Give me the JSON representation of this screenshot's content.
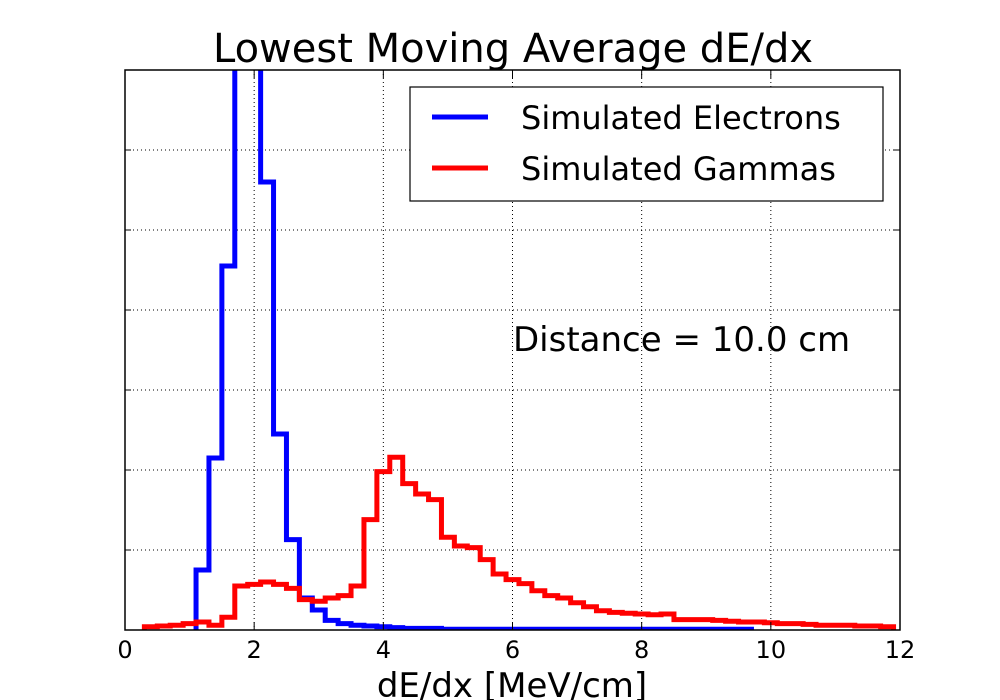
{
  "chart_data": {
    "type": "histogram-step",
    "title": "Lowest Moving Average dE/dx",
    "xlabel": "dE/dx [MeV/cm]",
    "ylabel": "",
    "xlim": [
      0,
      12
    ],
    "ylim": [
      0,
      700
    ],
    "x_ticks": [
      0,
      2,
      4,
      6,
      8,
      10,
      12
    ],
    "x_tick_labels": [
      "0",
      "2",
      "4",
      "6",
      "8",
      "10",
      "12"
    ],
    "y_ticks": [
      100,
      200,
      300,
      400,
      500,
      600,
      700
    ],
    "grid": true,
    "legend_position": "top-right",
    "annotation": "Distance = 10.0 cm",
    "bin_width": 0.2,
    "series": [
      {
        "name": "Simulated Electrons",
        "color": "#0000ff",
        "bin_start": 1.1,
        "counts": [
          75,
          215,
          455,
          760,
          1100,
          560,
          245,
          113,
          40,
          25,
          12,
          8,
          6,
          5,
          4,
          3,
          2,
          2,
          2,
          1,
          1,
          1,
          1,
          1,
          1,
          1,
          1,
          1,
          1,
          1,
          1,
          1,
          1,
          1,
          1,
          1,
          1,
          1,
          1,
          1,
          1,
          1,
          1
        ]
      },
      {
        "name": "Simulated Gammas",
        "color": "#ff0000",
        "bin_start": 0.3,
        "counts": [
          4,
          5,
          6,
          8,
          10,
          6,
          16,
          55,
          57,
          60,
          57,
          52,
          38,
          36,
          40,
          43,
          55,
          138,
          198,
          216,
          183,
          170,
          163,
          116,
          105,
          103,
          88,
          70,
          63,
          58,
          49,
          43,
          40,
          34,
          29,
          24,
          22,
          21,
          20,
          19,
          20,
          13,
          13,
          13,
          12,
          11,
          10,
          10,
          9,
          8,
          8,
          7,
          6,
          6,
          6,
          5,
          5,
          4
        ]
      }
    ]
  }
}
